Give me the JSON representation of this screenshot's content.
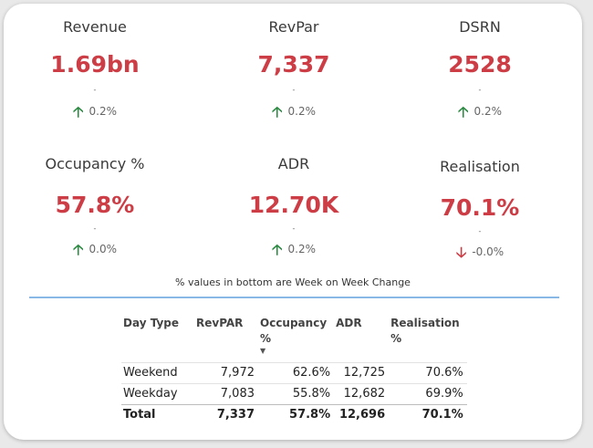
{
  "kpis": [
    {
      "title": "Revenue",
      "value": "1.69bn",
      "dash": "-",
      "change": "0.2%",
      "direction": "up"
    },
    {
      "title": "RevPar",
      "value": "7,337",
      "dash": "-",
      "change": "0.2%",
      "direction": "up"
    },
    {
      "title": "DSRN",
      "value": "2528",
      "dash": "-",
      "change": "0.2%",
      "direction": "up"
    },
    {
      "title": "Occupancy %",
      "value": "57.8%",
      "dash": "-",
      "change": "0.0%",
      "direction": "up"
    },
    {
      "title": "ADR",
      "value": "12.70K",
      "dash": "-",
      "change": "0.2%",
      "direction": "up"
    },
    {
      "title": "Realisation",
      "value": "70.1%",
      "dash": "-",
      "change": "-0.0%",
      "direction": "down"
    }
  ],
  "icons": {
    "up": "arrow-up-icon",
    "down": "arrow-down-icon",
    "sort": "sort-descending-icon"
  },
  "colors": {
    "value": "#cc3d46",
    "up_arrow": "#2c8a43",
    "down_arrow": "#cc3d46",
    "divider": "#8ab8e6"
  },
  "note": "% values in bottom are Week on Week Change",
  "table": {
    "headers": [
      "Day Type",
      "RevPAR",
      "Occupancy %",
      "ADR",
      "Realisation %"
    ],
    "rows": [
      [
        "Weekend",
        "7,972",
        "62.6%",
        "12,725",
        "70.6%"
      ],
      [
        "Weekday",
        "7,083",
        "55.8%",
        "12,682",
        "69.9%"
      ]
    ],
    "total": [
      "Total",
      "7,337",
      "57.8%",
      "12,696",
      "70.1%"
    ]
  }
}
